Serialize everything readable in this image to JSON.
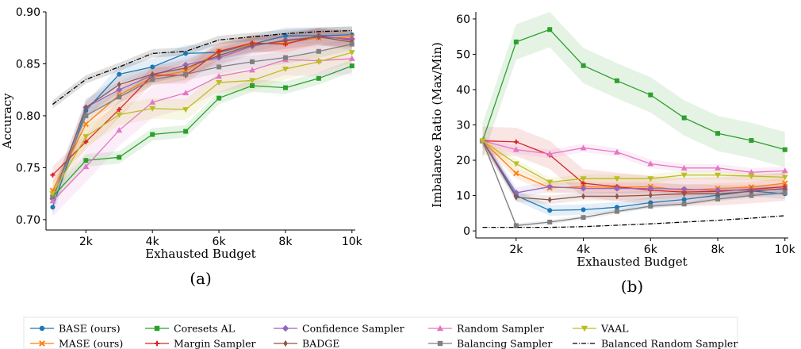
{
  "legend": [
    {
      "label": "BASE (ours)",
      "color": "#1f77b4",
      "marker": "circle",
      "dash": ""
    },
    {
      "label": "MASE (ours)",
      "color": "#ff7f0e",
      "marker": "x",
      "dash": ""
    },
    {
      "label": "Coresets AL",
      "color": "#2ca02c",
      "marker": "square",
      "dash": ""
    },
    {
      "label": "Margin Sampler",
      "color": "#d62728",
      "marker": "plus",
      "dash": ""
    },
    {
      "label": "Confidence Sampler",
      "color": "#9467bd",
      "marker": "diamond",
      "dash": ""
    },
    {
      "label": "BADGE",
      "color": "#8c564b",
      "marker": "thin-diamond",
      "dash": ""
    },
    {
      "label": "Random Sampler",
      "color": "#e377c2",
      "marker": "triangle-up",
      "dash": ""
    },
    {
      "label": "Balancing Sampler",
      "color": "#7f7f7f",
      "marker": "square",
      "dash": ""
    },
    {
      "label": "VAAL",
      "color": "#bcbd22",
      "marker": "triangle-down",
      "dash": ""
    },
    {
      "label": "Balanced Random Sampler",
      "color": "#000000",
      "marker": "none",
      "dash": "6,2,1,2"
    }
  ],
  "chart_data": [
    {
      "type": "line",
      "panel_label": "(a)",
      "xlabel": "Exhausted Budget",
      "ylabel": "Accuracy",
      "xlim": [
        800,
        10100
      ],
      "ylim": [
        0.69,
        0.9
      ],
      "xticks": [
        2000,
        4000,
        6000,
        8000,
        10000
      ],
      "xtick_labels": [
        "2k",
        "4k",
        "6k",
        "8k",
        "10k"
      ],
      "yticks": [
        0.7,
        0.75,
        0.8,
        0.85,
        0.9
      ],
      "ytick_labels": [
        "0.70",
        "0.75",
        "0.80",
        "0.85",
        "0.90"
      ],
      "x": [
        1000,
        2000,
        3000,
        4000,
        5000,
        6000,
        7000,
        8000,
        9000,
        10000
      ],
      "series": [
        {
          "name": "BASE (ours)",
          "values": [
            0.712,
            0.805,
            0.84,
            0.847,
            0.86,
            0.861,
            0.869,
            0.877,
            0.877,
            0.878
          ],
          "band": 0.008
        },
        {
          "name": "MASE (ours)",
          "values": [
            0.728,
            0.792,
            0.82,
            0.837,
            0.843,
            0.862,
            0.869,
            0.87,
            0.875,
            0.876
          ],
          "band": 0.008
        },
        {
          "name": "Coresets AL",
          "values": [
            0.722,
            0.757,
            0.76,
            0.782,
            0.785,
            0.817,
            0.829,
            0.827,
            0.836,
            0.848
          ],
          "band": 0.006
        },
        {
          "name": "Margin Sampler",
          "values": [
            0.743,
            0.775,
            0.806,
            0.839,
            0.839,
            0.862,
            0.87,
            0.869,
            0.877,
            0.873
          ],
          "band": 0.008
        },
        {
          "name": "Confidence Sampler",
          "values": [
            0.72,
            0.808,
            0.825,
            0.839,
            0.849,
            0.856,
            0.867,
            0.873,
            0.876,
            0.874
          ],
          "band": 0.008
        },
        {
          "name": "BADGE",
          "values": [
            0.72,
            0.808,
            0.83,
            0.84,
            0.846,
            0.858,
            0.868,
            0.872,
            0.876,
            0.871
          ],
          "band": 0.008
        },
        {
          "name": "Random Sampler",
          "values": [
            0.718,
            0.751,
            0.786,
            0.813,
            0.822,
            0.838,
            0.844,
            0.854,
            0.853,
            0.855
          ],
          "band": 0.015
        },
        {
          "name": "Balancing Sampler",
          "values": [
            0.722,
            0.8,
            0.818,
            0.835,
            0.84,
            0.847,
            0.852,
            0.856,
            0.862,
            0.869
          ],
          "band": 0.006
        },
        {
          "name": "VAAL",
          "values": [
            0.725,
            0.78,
            0.801,
            0.807,
            0.806,
            0.832,
            0.834,
            0.845,
            0.852,
            0.861
          ],
          "band": 0.01
        },
        {
          "name": "Balanced Random Sampler",
          "values": [
            0.811,
            0.835,
            0.847,
            0.86,
            0.862,
            0.873,
            0.876,
            0.879,
            0.881,
            0.882
          ],
          "band": 0.004
        }
      ]
    },
    {
      "type": "line",
      "panel_label": "(b)",
      "xlabel": "Exhausted Budget",
      "ylabel": "Imbalance Ratio (Max/Min)",
      "xlim": [
        800,
        10100
      ],
      "ylim": [
        -2,
        62
      ],
      "xticks": [
        2000,
        4000,
        6000,
        8000,
        10000
      ],
      "xtick_labels": [
        "2k",
        "4k",
        "6k",
        "8k",
        "10k"
      ],
      "yticks": [
        0,
        10,
        20,
        30,
        40,
        50,
        60
      ],
      "ytick_labels": [
        "0",
        "10",
        "20",
        "30",
        "40",
        "50",
        "60"
      ],
      "x": [
        1000,
        2000,
        3000,
        4000,
        5000,
        6000,
        7000,
        8000,
        9000,
        10000
      ],
      "series": [
        {
          "name": "BASE (ours)",
          "values": [
            25.5,
            10.0,
            5.8,
            6.0,
            6.7,
            8.0,
            8.9,
            10.1,
            11.3,
            10.5
          ],
          "band": 1.5
        },
        {
          "name": "MASE (ours)",
          "values": [
            25.5,
            16.3,
            12.2,
            12.5,
            12.3,
            12.5,
            11.5,
            12.0,
            12.4,
            13.5
          ],
          "band": 1.5
        },
        {
          "name": "Coresets AL",
          "values": [
            25.5,
            53.5,
            57.0,
            46.8,
            42.5,
            38.5,
            32.0,
            27.6,
            25.6,
            23.0
          ],
          "band": 5.0
        },
        {
          "name": "Margin Sampler",
          "values": [
            25.5,
            25.2,
            21.5,
            13.5,
            12.5,
            11.5,
            11.0,
            11.2,
            11.8,
            12.5
          ],
          "band": 4.0
        },
        {
          "name": "Confidence Sampler",
          "values": [
            25.5,
            10.8,
            12.5,
            12.0,
            12.0,
            12.0,
            11.8,
            11.5,
            11.5,
            11.8
          ],
          "band": 1.5
        },
        {
          "name": "BADGE",
          "values": [
            25.5,
            9.5,
            8.8,
            9.8,
            9.8,
            10.1,
            10.5,
            10.5,
            11.2,
            12.0
          ],
          "band": 1.2
        },
        {
          "name": "Random Sampler",
          "values": [
            25.5,
            23.0,
            21.8,
            23.5,
            22.3,
            19.0,
            17.8,
            17.8,
            16.6,
            17.0
          ],
          "band": 1.2
        },
        {
          "name": "Balancing Sampler",
          "values": [
            25.5,
            1.5,
            2.5,
            3.8,
            5.5,
            7.0,
            7.6,
            9.0,
            10.0,
            10.8
          ],
          "band": 0.6
        },
        {
          "name": "VAAL",
          "values": [
            25.5,
            19.0,
            13.8,
            14.8,
            14.8,
            14.8,
            15.8,
            15.8,
            15.5,
            15.2
          ],
          "band": 1.2
        },
        {
          "name": "Balanced Random Sampler",
          "values": [
            1.0,
            1.0,
            1.0,
            1.2,
            1.6,
            2.0,
            2.5,
            3.0,
            3.6,
            4.3
          ],
          "band": 0.0
        }
      ]
    }
  ]
}
